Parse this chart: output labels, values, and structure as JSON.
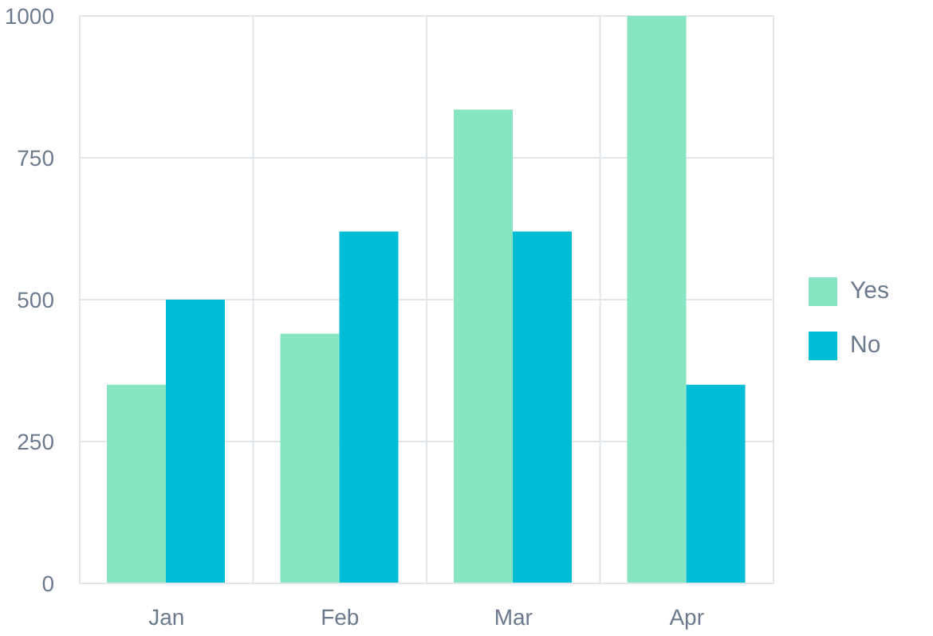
{
  "chart_data": {
    "type": "bar",
    "categories": [
      "Jan",
      "Feb",
      "Mar",
      "Apr"
    ],
    "series": [
      {
        "name": "Yes",
        "color": "#88e5c1",
        "values": [
          350,
          440,
          835,
          1000
        ]
      },
      {
        "name": "No",
        "color": "#00bcd4",
        "values": [
          500,
          620,
          620,
          350
        ]
      }
    ],
    "ylim": [
      0,
      1000
    ],
    "yticks": [
      0,
      250,
      500,
      750,
      1000
    ],
    "grid": true,
    "legend": "right"
  }
}
